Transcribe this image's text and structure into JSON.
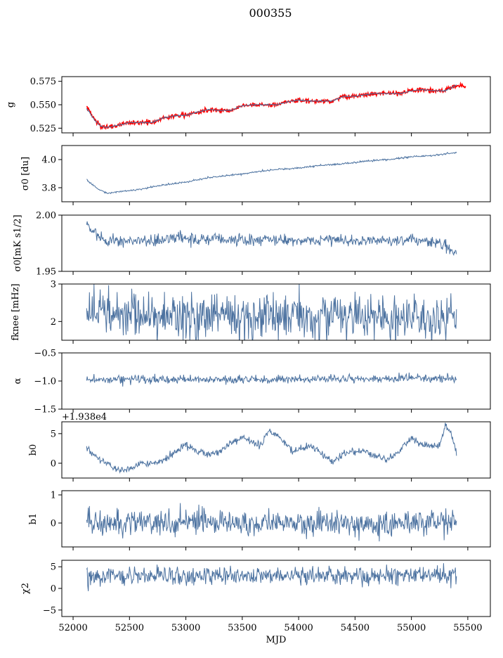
{
  "figure_title": "000355",
  "chart_data": [
    {
      "type": "line",
      "ylabel": "g",
      "ylim": [
        0.52,
        0.58
      ],
      "yticks": [
        0.525,
        0.55,
        0.575
      ],
      "ytick_labels": [
        "0.525",
        "0.550",
        "0.575"
      ],
      "xlim": [
        51900,
        55700
      ],
      "series": [
        {
          "color": "#ff0000",
          "lw": 1.6,
          "noise": 0.0012,
          "x": [
            52120,
            52140,
            52160,
            52200,
            52250,
            52300,
            52400,
            52500,
            52600,
            52700,
            52800,
            52900,
            53000,
            53100,
            53200,
            53300,
            53400,
            53500,
            53600,
            53700,
            53800,
            53900,
            54000,
            54100,
            54200,
            54300,
            54400,
            54500,
            54600,
            54700,
            54800,
            54900,
            55000,
            55100,
            55200,
            55300,
            55400,
            55480
          ],
          "y": [
            0.548,
            0.545,
            0.54,
            0.532,
            0.527,
            0.526,
            0.528,
            0.531,
            0.531,
            0.531,
            0.536,
            0.538,
            0.539,
            0.542,
            0.545,
            0.544,
            0.544,
            0.549,
            0.55,
            0.55,
            0.55,
            0.553,
            0.555,
            0.554,
            0.554,
            0.554,
            0.559,
            0.559,
            0.561,
            0.562,
            0.562,
            0.562,
            0.565,
            0.566,
            0.565,
            0.565,
            0.571,
            0.569
          ]
        },
        {
          "color": "#4c72a0",
          "lw": 1.0,
          "noise": 0.0003,
          "x": [
            52120,
            52140,
            52160,
            52200,
            52250,
            52300,
            52400,
            52500,
            52600,
            52700,
            52800,
            52900,
            53000,
            53100,
            53200,
            53300,
            53400,
            53500,
            53600,
            53700,
            53800,
            53900,
            54000,
            54100,
            54200,
            54300,
            54400,
            54500,
            54600,
            54700,
            54800,
            54900,
            55000,
            55100,
            55200,
            55300,
            55400
          ],
          "y": [
            0.546,
            0.543,
            0.539,
            0.532,
            0.527,
            0.526,
            0.528,
            0.531,
            0.531,
            0.531,
            0.536,
            0.538,
            0.539,
            0.542,
            0.545,
            0.544,
            0.544,
            0.549,
            0.55,
            0.55,
            0.55,
            0.553,
            0.555,
            0.554,
            0.554,
            0.554,
            0.559,
            0.559,
            0.561,
            0.562,
            0.562,
            0.562,
            0.565,
            0.566,
            0.565,
            0.565,
            0.571
          ]
        }
      ]
    },
    {
      "type": "line",
      "ylabel": "σ0 [du]",
      "ylim": [
        3.7,
        4.1
      ],
      "yticks": [
        3.8,
        4.0
      ],
      "ytick_labels": [
        "3.8",
        "4.0"
      ],
      "xlim": [
        51900,
        55700
      ],
      "series": [
        {
          "color": "#4c72a0",
          "lw": 1.0,
          "noise": 0.003,
          "x": [
            52120,
            52200,
            52300,
            52400,
            52500,
            52600,
            52800,
            53000,
            53200,
            53400,
            53600,
            53800,
            54000,
            54200,
            54400,
            54600,
            54800,
            55000,
            55200,
            55300,
            55400
          ],
          "y": [
            3.86,
            3.8,
            3.76,
            3.77,
            3.78,
            3.79,
            3.82,
            3.84,
            3.87,
            3.89,
            3.91,
            3.93,
            3.94,
            3.96,
            3.97,
            3.99,
            4.0,
            4.02,
            4.03,
            4.04,
            4.05
          ]
        }
      ]
    },
    {
      "type": "line",
      "ylabel": "σ0[mK s1/2]",
      "ylim": [
        1.95,
        2.0
      ],
      "yticks": [
        1.95,
        2.0
      ],
      "ytick_labels": [
        "1.95",
        "2.00"
      ],
      "xlim": [
        51900,
        55700
      ],
      "series": [
        {
          "color": "#4c72a0",
          "lw": 1.0,
          "noise": 0.0025,
          "x": [
            52120,
            52150,
            52200,
            52300,
            52500,
            52700,
            52900,
            53100,
            53300,
            53500,
            53700,
            53900,
            54100,
            54300,
            54500,
            54700,
            54900,
            55100,
            55250,
            55350,
            55400
          ],
          "y": [
            1.993,
            1.988,
            1.984,
            1.978,
            1.977,
            1.977,
            1.979,
            1.978,
            1.979,
            1.978,
            1.978,
            1.979,
            1.977,
            1.978,
            1.977,
            1.978,
            1.977,
            1.978,
            1.976,
            1.97,
            1.966
          ]
        }
      ]
    },
    {
      "type": "line",
      "ylabel": "fknee [mHz]",
      "ylim": [
        1.5,
        3.0
      ],
      "yticks": [
        2,
        3
      ],
      "ytick_labels": [
        "2",
        "3"
      ],
      "xlim": [
        51900,
        55700
      ],
      "series": [
        {
          "color": "#4c72a0",
          "lw": 1.0,
          "noise": 0.3,
          "x": [
            52120,
            52400,
            52700,
            53000,
            53300,
            53600,
            53900,
            54200,
            54500,
            54800,
            55100,
            55400
          ],
          "y": [
            2.2,
            2.15,
            2.15,
            2.1,
            2.15,
            2.1,
            2.1,
            2.1,
            2.15,
            2.1,
            2.1,
            2.1
          ]
        }
      ]
    },
    {
      "type": "line",
      "ylabel": "α",
      "ylim": [
        -1.5,
        -0.5
      ],
      "yticks": [
        -1.5,
        -1.0,
        -0.5
      ],
      "ytick_labels": [
        "−1.5",
        "−1.0",
        "−0.5"
      ],
      "xlim": [
        51900,
        55700
      ],
      "series": [
        {
          "color": "#4c72a0",
          "lw": 1.0,
          "noise": 0.035,
          "x": [
            52120,
            52500,
            53000,
            53500,
            54000,
            54500,
            55000,
            55400
          ],
          "y": [
            -0.98,
            -0.97,
            -0.97,
            -0.97,
            -0.97,
            -0.96,
            -0.95,
            -0.96
          ]
        }
      ]
    },
    {
      "type": "line",
      "ylabel": "b0",
      "offset_text": "+1.938e4",
      "ylim": [
        -2.5,
        7
      ],
      "yticks": [
        0,
        5
      ],
      "ytick_labels": [
        "0",
        "5"
      ],
      "xlim": [
        51900,
        55700
      ],
      "series": [
        {
          "color": "#4c72a0",
          "lw": 1.0,
          "noise": 0.3,
          "x": [
            52120,
            52150,
            52250,
            52300,
            52400,
            52450,
            52550,
            52600,
            52700,
            52850,
            53000,
            53100,
            53200,
            53300,
            53400,
            53500,
            53550,
            53650,
            53750,
            53850,
            53950,
            54100,
            54250,
            54300,
            54400,
            54500,
            54600,
            54700,
            54800,
            54900,
            55000,
            55100,
            55150,
            55250,
            55300,
            55350,
            55400
          ],
          "y": [
            3.0,
            2.0,
            0.5,
            0.0,
            -1.2,
            -1.3,
            -0.5,
            0.0,
            -0.2,
            1.0,
            3.2,
            2.0,
            1.5,
            2.0,
            3.5,
            4.5,
            4.0,
            3.0,
            5.5,
            4.0,
            2.0,
            3.0,
            1.0,
            0.3,
            1.5,
            2.0,
            2.0,
            1.0,
            0.8,
            2.0,
            4.5,
            3.0,
            3.0,
            2.8,
            6.5,
            5.0,
            2.0
          ]
        }
      ]
    },
    {
      "type": "line",
      "ylabel": "b1",
      "ylim": [
        -0.85,
        1.15
      ],
      "yticks": [
        0,
        1
      ],
      "ytick_labels": [
        "0",
        "1"
      ],
      "xlim": [
        51900,
        55700
      ],
      "series": [
        {
          "color": "#4c72a0",
          "lw": 1.0,
          "noise": 0.22,
          "x": [
            52120,
            52500,
            53000,
            53500,
            54000,
            54500,
            55000,
            55400
          ],
          "y": [
            0.05,
            0.0,
            0.0,
            0.0,
            0.0,
            0.0,
            0.0,
            0.0
          ]
        }
      ]
    },
    {
      "type": "line",
      "ylabel": "χ2",
      "xlabel": "MJD",
      "ylim": [
        -6.5,
        6.5
      ],
      "yticks": [
        -5,
        0,
        5
      ],
      "ytick_labels": [
        "−5",
        "0",
        "5"
      ],
      "xlim": [
        51900,
        55700
      ],
      "xticks": [
        52000,
        52500,
        53000,
        53500,
        54000,
        54500,
        55000,
        55500
      ],
      "xtick_labels": [
        "52000",
        "52500",
        "53000",
        "53500",
        "54000",
        "54500",
        "55000",
        "55500"
      ],
      "series": [
        {
          "color": "#4c72a0",
          "lw": 1.0,
          "noise": 1.0,
          "x": [
            52120,
            52400,
            52700,
            53000,
            53300,
            53600,
            53900,
            54200,
            54500,
            54800,
            55100,
            55400
          ],
          "y": [
            2.5,
            3.0,
            3.0,
            3.0,
            3.0,
            3.0,
            3.0,
            3.0,
            3.0,
            3.0,
            3.0,
            3.0
          ]
        }
      ]
    }
  ]
}
